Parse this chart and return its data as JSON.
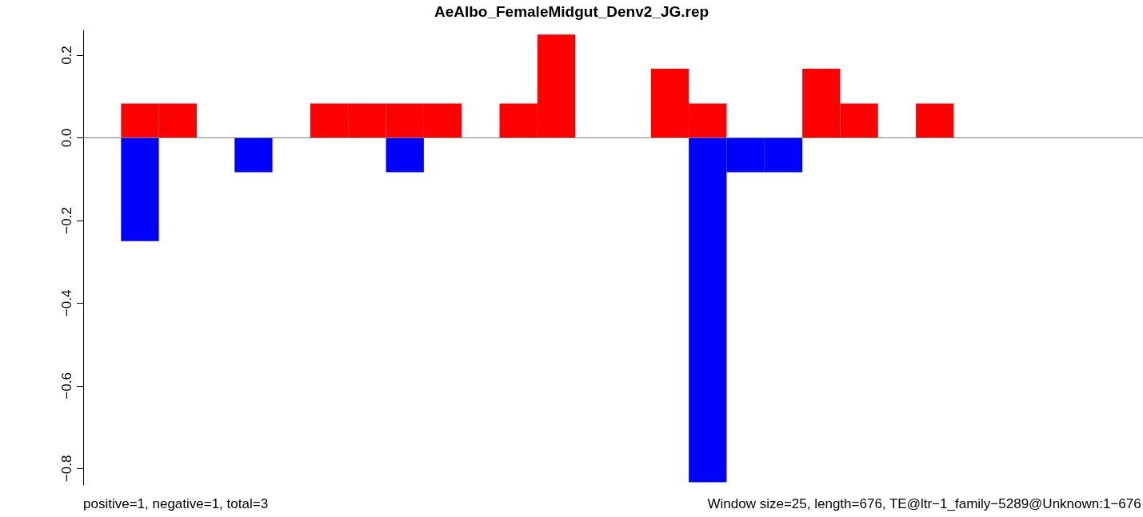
{
  "chart_data": {
    "type": "bar",
    "title": "AeAlbo_FemaleMidgut_Denv2_JG.rep",
    "categories": [
      null,
      null,
      null,
      null,
      null,
      null,
      null,
      null,
      null,
      null,
      null,
      null,
      null,
      null,
      null,
      null,
      null,
      null,
      null,
      null,
      null,
      null,
      null,
      null,
      null,
      null,
      null,
      null
    ],
    "stacked": true,
    "series": [
      {
        "color": "#ff0000",
        "values": [
          0,
          0.083,
          0.083,
          0,
          0,
          0,
          0.083,
          0.083,
          0.083,
          0.083,
          0,
          0.083,
          0.25,
          0,
          0,
          0.167,
          0.083,
          0,
          0,
          0.167,
          0.083,
          0,
          0.083,
          0,
          0,
          0,
          0,
          0
        ]
      },
      {
        "color": "#0000ff",
        "values": [
          0,
          -0.25,
          0,
          0,
          -0.083,
          0,
          0,
          0,
          -0.083,
          0,
          0,
          0,
          0,
          0,
          0,
          0,
          -0.833,
          -0.083,
          -0.083,
          0,
          0,
          0,
          0,
          0,
          0,
          0,
          0,
          0
        ]
      }
    ],
    "ylim": [
      -0.84,
      0.26
    ],
    "yticks": [
      {
        "value": -0.8,
        "label": "−0.8"
      },
      {
        "value": -0.6,
        "label": "−0.6"
      },
      {
        "value": -0.4,
        "label": "−0.4"
      },
      {
        "value": -0.2,
        "label": "−0.2"
      },
      {
        "value": 0,
        "label": "0.0"
      },
      {
        "value": 0.2,
        "label": "0.2"
      }
    ],
    "tick_labels": "y",
    "ref_lines": [
      {
        "axis": "y",
        "value": 0,
        "color": "#808080"
      }
    ],
    "annotations": [
      "positive=1, negative=1, total=3",
      "Window size=25, length=676, TE@ltr−1_family−5289@Unknown:1−676"
    ]
  }
}
